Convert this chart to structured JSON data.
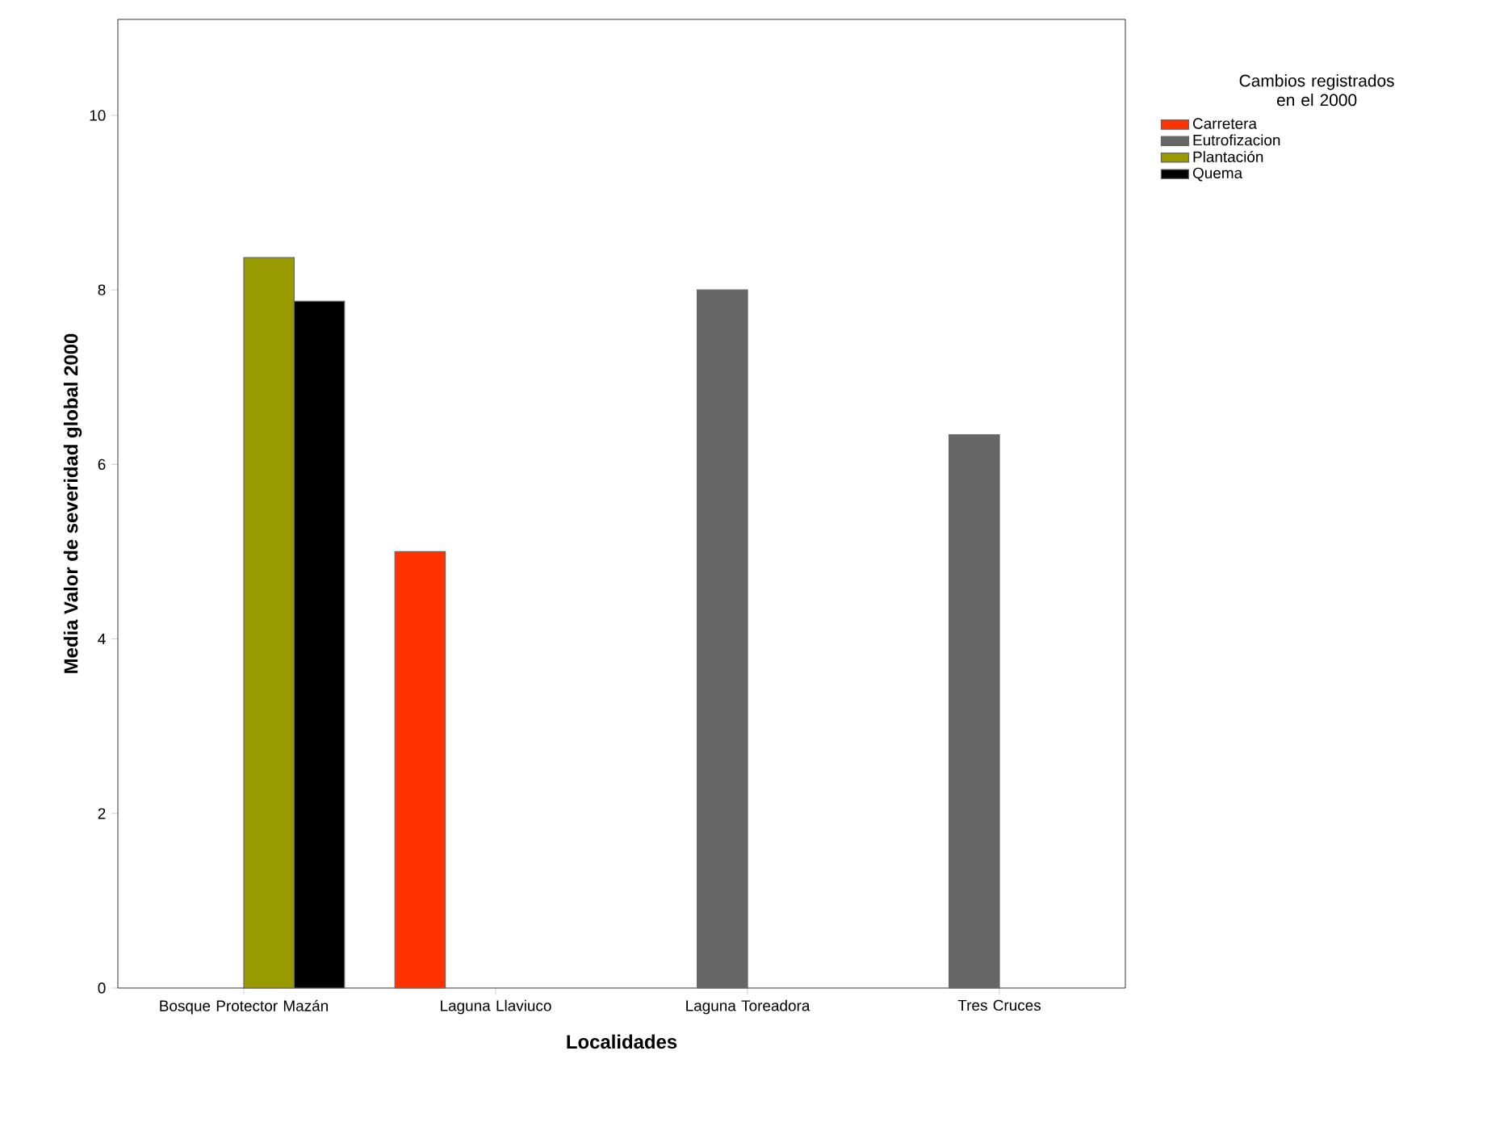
{
  "chart_data": {
    "type": "bar",
    "xlabel": "Localidades",
    "ylabel": "Media Valor de severidad global 2000",
    "legend_title": "Cambios registrados en el 2000",
    "categories": [
      "Bosque Protector Mazán",
      "Laguna Llaviuco",
      "Laguna Toreadora",
      "Tres Cruces"
    ],
    "series": [
      {
        "name": "Carretera",
        "color": "#ff3300",
        "values": [
          null,
          5.0,
          null,
          null
        ]
      },
      {
        "name": "Eutrofizacion",
        "color": "#666666",
        "values": [
          null,
          null,
          8.0,
          6.34
        ]
      },
      {
        "name": "Plantación",
        "color": "#999900",
        "values": [
          8.37,
          null,
          null,
          null
        ]
      },
      {
        "name": "Quema",
        "color": "#000000",
        "values": [
          7.87,
          null,
          null,
          null
        ]
      }
    ],
    "ylim": [
      0,
      11.1
    ],
    "yticks": [
      0,
      2,
      4,
      6,
      8,
      10
    ],
    "grid": false,
    "legend": "top right"
  }
}
